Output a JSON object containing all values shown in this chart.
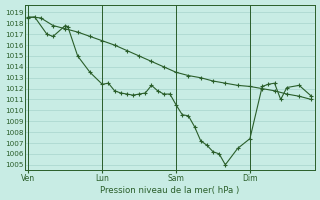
{
  "title": "Pression niveau de la mer( hPa )",
  "background_color": "#c8ece4",
  "grid_color": "#a8d4cc",
  "line_color": "#2a5e2a",
  "ylim": [
    1004.5,
    1019.7
  ],
  "yticks": [
    1005,
    1006,
    1007,
    1008,
    1009,
    1010,
    1011,
    1012,
    1013,
    1014,
    1015,
    1016,
    1017,
    1018,
    1019
  ],
  "xtick_labels": [
    "Ven",
    "Lun",
    "Sam",
    "Dim"
  ],
  "xtick_positions": [
    0,
    6,
    12,
    18
  ],
  "xlim": [
    -0.3,
    23.3
  ],
  "line1_x": [
    0,
    0.5,
    1.5,
    2,
    3,
    3.2,
    4,
    5,
    6,
    6.5,
    7,
    7.5,
    8,
    8.5,
    9,
    9.5,
    10,
    10.5,
    11,
    11.5,
    12,
    12.5,
    13,
    13.5,
    14,
    14.5,
    15,
    15.5,
    16,
    17,
    18,
    19,
    19.5,
    20,
    20.5,
    21,
    22,
    23
  ],
  "line1_y": [
    1018.5,
    1018.6,
    1017.0,
    1016.8,
    1017.8,
    1017.7,
    1015.0,
    1013.5,
    1012.4,
    1012.5,
    1011.8,
    1011.6,
    1011.5,
    1011.4,
    1011.5,
    1011.6,
    1012.3,
    1011.8,
    1011.5,
    1011.5,
    1010.5,
    1009.6,
    1009.5,
    1008.5,
    1007.2,
    1006.8,
    1006.2,
    1006.0,
    1005.0,
    1006.5,
    1007.4,
    1012.2,
    1012.4,
    1012.5,
    1011.0,
    1012.1,
    1012.3,
    1011.3
  ],
  "line2_x": [
    0,
    1,
    2,
    3,
    4,
    5,
    6,
    7,
    8,
    9,
    10,
    11,
    12,
    13,
    14,
    15,
    16,
    17,
    18,
    19,
    20,
    21,
    22,
    23
  ],
  "line2_y": [
    1018.6,
    1018.5,
    1017.8,
    1017.5,
    1017.2,
    1016.8,
    1016.4,
    1016.0,
    1015.5,
    1015.0,
    1014.5,
    1014.0,
    1013.5,
    1013.2,
    1013.0,
    1012.7,
    1012.5,
    1012.3,
    1012.2,
    1012.0,
    1011.8,
    1011.5,
    1011.3,
    1011.0
  ]
}
